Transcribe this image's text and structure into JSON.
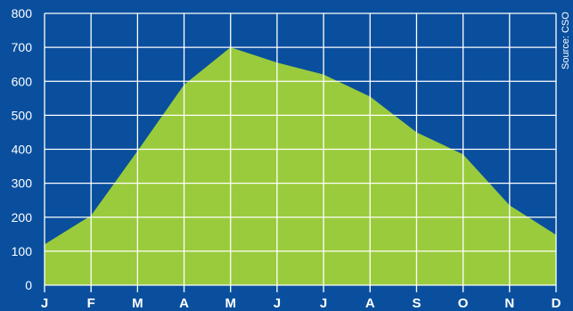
{
  "source_note": "Source: CSO",
  "colors": {
    "background": "#0a4f9e",
    "area_fill": "#9acb3c",
    "grid": "#ffffff",
    "text": "#ffffff"
  },
  "chart_data": {
    "type": "area",
    "categories": [
      "J",
      "F",
      "M",
      "A",
      "M",
      "J",
      "J",
      "A",
      "S",
      "O",
      "N",
      "D"
    ],
    "values": [
      120,
      205,
      395,
      590,
      700,
      655,
      620,
      555,
      450,
      385,
      235,
      148
    ],
    "ylim": [
      0,
      800
    ],
    "yticks": [
      0,
      100,
      200,
      300,
      400,
      500,
      600,
      700,
      800
    ],
    "grid": true,
    "title": "",
    "xlabel": "",
    "ylabel": ""
  }
}
